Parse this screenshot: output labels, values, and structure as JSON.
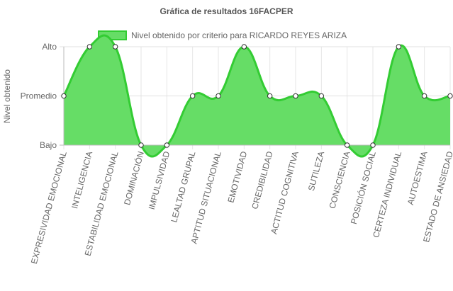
{
  "chart_data": {
    "type": "area",
    "title": "Gráfica de resultados 16FACPER",
    "xlabel": "",
    "ylabel": "Nivel obtenido",
    "y_categories": [
      "Bajo",
      "Promedio",
      "Alto"
    ],
    "ylim": [
      0,
      2
    ],
    "grid": true,
    "legend_position": "top",
    "categories": [
      "EXPRESIVIDAD EMOCIONAL",
      "INTELIGENCIA",
      "ESTABILIDAD EMOCIONAL",
      "DOMINACIÓN",
      "IMPULSIVIDAD",
      "LEALTAD GRUPAL",
      "APTITUD SITUACIONAL",
      "EMOTIVIDAD",
      "CREDIBILIDAD",
      "ACTITUD COGNITIVA",
      "SUTILEZA",
      "CONSCIENCIA",
      "POSICIÓN SOCIAL",
      "CERTEZA INDIVIDUAL",
      "AUTOESTIMA",
      "ESTADO DE ANSIEDAD"
    ],
    "series": [
      {
        "name": "Nivel obtenido por criterio para RICARDO REYES ARIZA",
        "values": [
          1,
          2,
          2,
          0,
          0,
          1,
          1,
          2,
          1,
          1,
          1,
          0,
          0,
          2,
          1,
          1
        ],
        "line_color": "#33cc33",
        "fill_color": "#66dd66"
      }
    ]
  }
}
